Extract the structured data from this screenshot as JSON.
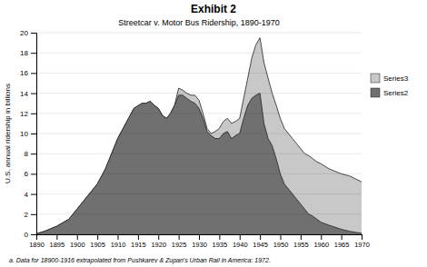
{
  "chart_data": {
    "type": "area",
    "title": "Exhibit 2",
    "subtitle": "Streetcar v. Motor Bus Ridership, 1890-1970",
    "ylabel": "U.S. annual ridership in billions",
    "annotations": [
      "a. Data for 18900-1916 extrapolated from Pushkarev & Zupan's Urban Rail in America: 1972."
    ],
    "stacked": false,
    "grid": true,
    "legend": "right",
    "xlim": [
      1890,
      1970
    ],
    "ylim": [
      0,
      20
    ],
    "xticks": [
      1890,
      1895,
      1900,
      1905,
      1910,
      1915,
      1920,
      1925,
      1930,
      1935,
      1940,
      1945,
      1950,
      1955,
      1960,
      1965,
      1970
    ],
    "yticks": [
      0,
      2,
      4,
      6,
      8,
      10,
      12,
      14,
      16,
      18,
      20
    ],
    "x": [
      1890,
      1892,
      1895,
      1898,
      1900,
      1902,
      1905,
      1907,
      1910,
      1912,
      1914,
      1916,
      1917,
      1918,
      1919,
      1920,
      1921,
      1922,
      1923,
      1924,
      1925,
      1926,
      1927,
      1928,
      1929,
      1930,
      1931,
      1932,
      1933,
      1934,
      1935,
      1936,
      1937,
      1938,
      1939,
      1940,
      1941,
      1942,
      1943,
      1944,
      1945,
      1946,
      1947,
      1948,
      1949,
      1950,
      1951,
      1952,
      1953,
      1954,
      1955,
      1956,
      1957,
      1958,
      1959,
      1960,
      1962,
      1965,
      1967,
      1970
    ],
    "series": [
      {
        "name": "Series3",
        "color": "#c8c8c8",
        "values": [
          0.05,
          0.3,
          0.8,
          1.5,
          2.5,
          3.5,
          5.0,
          6.5,
          9.5,
          11.0,
          12.5,
          13.0,
          13.0,
          13.2,
          12.8,
          12.5,
          11.8,
          11.5,
          12.0,
          12.8,
          14.5,
          14.3,
          14.0,
          13.8,
          13.8,
          13.3,
          12.0,
          10.5,
          10.0,
          10.2,
          10.5,
          11.2,
          11.5,
          11.0,
          11.2,
          11.5,
          13.5,
          15.5,
          17.5,
          18.8,
          19.5,
          17.0,
          15.5,
          14.0,
          12.8,
          11.5,
          10.5,
          10.0,
          9.5,
          9.0,
          8.5,
          8.0,
          7.8,
          7.5,
          7.2,
          7.0,
          6.5,
          6.0,
          5.8,
          5.2
        ]
      },
      {
        "name": "Series2",
        "color": "#707070",
        "values": [
          0.05,
          0.3,
          0.8,
          1.5,
          2.5,
          3.5,
          5.0,
          6.5,
          9.5,
          11.0,
          12.5,
          13.0,
          13.0,
          13.2,
          12.8,
          12.5,
          11.8,
          11.5,
          12.0,
          12.8,
          13.8,
          13.8,
          13.5,
          13.2,
          13.0,
          12.5,
          11.5,
          10.2,
          9.8,
          9.5,
          9.5,
          10.0,
          10.2,
          9.5,
          9.8,
          10.0,
          11.5,
          12.8,
          13.5,
          13.8,
          14.0,
          11.0,
          9.5,
          8.8,
          7.5,
          6.0,
          5.0,
          4.5,
          4.0,
          3.5,
          3.0,
          2.5,
          2.0,
          1.8,
          1.5,
          1.2,
          0.9,
          0.5,
          0.3,
          0.1
        ]
      }
    ]
  }
}
